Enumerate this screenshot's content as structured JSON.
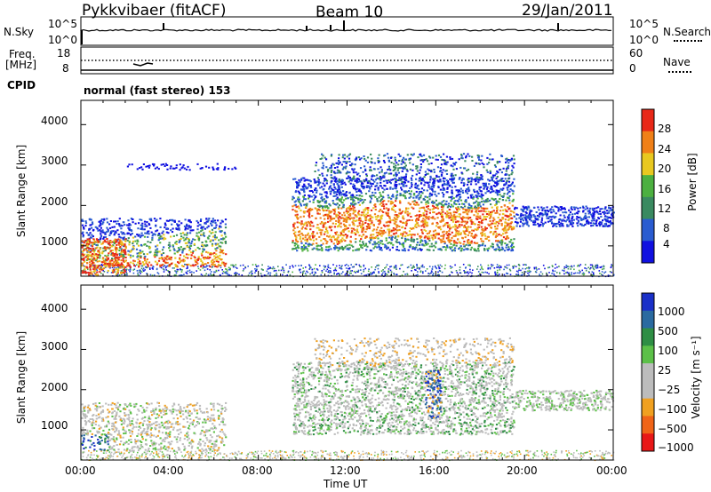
{
  "header": {
    "station": "Pykkvibaer (fitACF)",
    "beam": "Beam 10",
    "date": "29/Jan/2011"
  },
  "status": {
    "nsky_label": "N.Sky",
    "nsky_ticks": [
      "10^5",
      "10^0"
    ],
    "nsearch_label": "N.Search",
    "nsearch_ticks": [
      "10^5",
      "10^0"
    ],
    "freq_label": "Freq.",
    "freq_unit": "[MHz]",
    "freq_ticks": [
      "18",
      "8"
    ],
    "nave_label": "Nave",
    "nave_ticks": [
      "60",
      "0"
    ],
    "cpid_label": "CPID",
    "cpid_text": "normal (fast stereo) 153"
  },
  "chart_data": [
    {
      "type": "heatmap",
      "name": "power",
      "ylabel": "Slant Range [km]",
      "yticks": [
        "4000",
        "3000",
        "2000",
        "1000"
      ],
      "ylim": [
        250,
        4600
      ],
      "xlim_hours": [
        0,
        24
      ],
      "colorbar_label": "Power [dB]",
      "colorbar_ticks": [
        "28",
        "24",
        "20",
        "16",
        "12",
        "8",
        "4"
      ],
      "colors": [
        "#1010e0",
        "#2a5cd0",
        "#3a8a60",
        "#4cb040",
        "#e8c820",
        "#f08018",
        "#e82818"
      ]
    },
    {
      "type": "heatmap",
      "name": "velocity",
      "ylabel": "Slant Range [km]",
      "yticks": [
        "4000",
        "3000",
        "2000",
        "1000"
      ],
      "ylim": [
        250,
        4600
      ],
      "xlim_hours": [
        0,
        24
      ],
      "xlabel": "Time UT",
      "xticks": [
        "00:00",
        "04:00",
        "08:00",
        "12:00",
        "16:00",
        "20:00",
        "00:00"
      ],
      "colorbar_label": "Velocity [m s⁻¹]",
      "colorbar_ticks": [
        "1000",
        "500",
        "100",
        "25",
        "−25",
        "−100",
        "−500",
        "−1000"
      ],
      "colors": [
        "#1a30c8",
        "#2a6aa0",
        "#2e8e44",
        "#5cc048",
        "#bcbcbc",
        "#bcbcbc",
        "#f0a020",
        "#f06418",
        "#e81818"
      ]
    }
  ]
}
